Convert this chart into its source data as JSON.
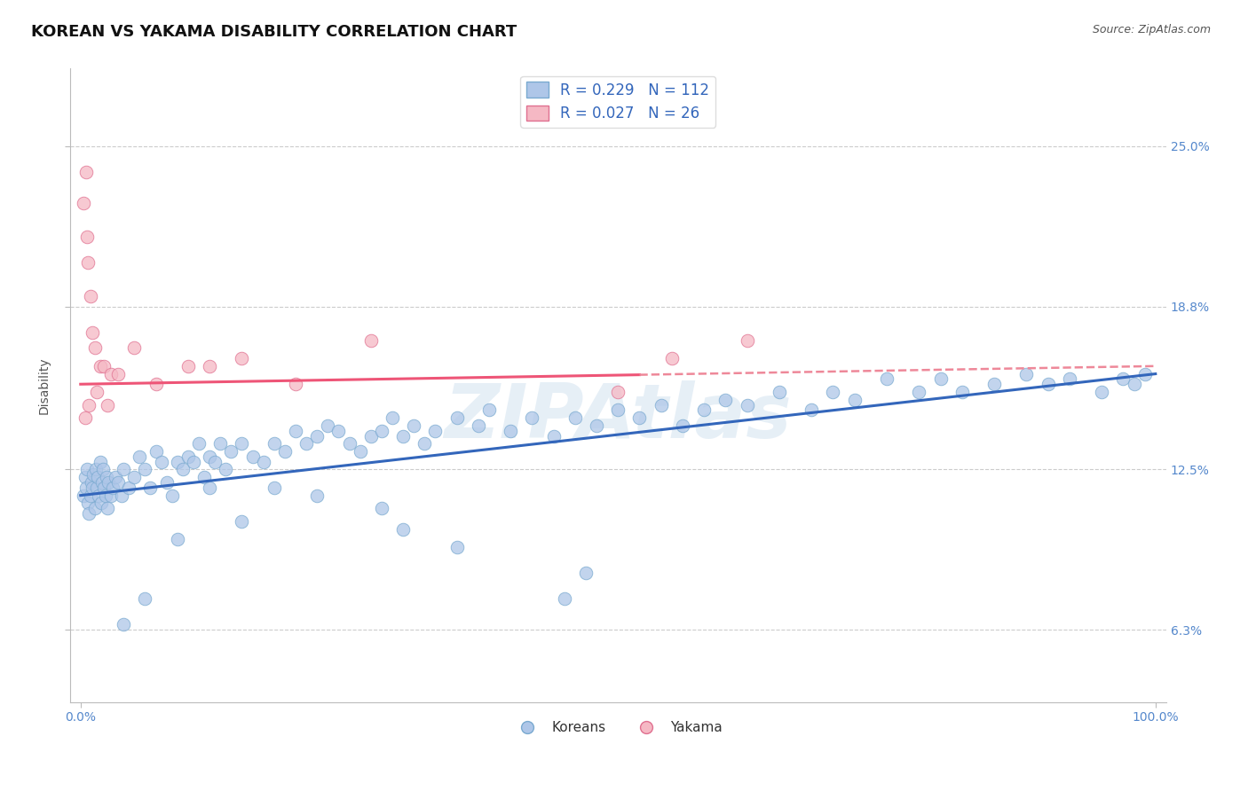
{
  "title": "KOREAN VS YAKAMA DISABILITY CORRELATION CHART",
  "source": "Source: ZipAtlas.com",
  "ylabel": "Disability",
  "xlim": [
    -1.0,
    101.0
  ],
  "ylim": [
    3.5,
    28.0
  ],
  "yticks": [
    6.3,
    12.5,
    18.8,
    25.0
  ],
  "xticks": [
    0.0,
    100.0
  ],
  "xtick_labels": [
    "0.0%",
    "100.0%"
  ],
  "ytick_labels": [
    "6.3%",
    "12.5%",
    "18.8%",
    "25.0%"
  ],
  "grid_color": "#cccccc",
  "background_color": "#ffffff",
  "korean_color": "#aec6e8",
  "korean_edge_color": "#7aaad0",
  "yakama_color": "#f5b8c4",
  "yakama_edge_color": "#e07090",
  "korean_R": 0.229,
  "korean_N": 112,
  "yakama_R": 0.027,
  "yakama_N": 26,
  "korean_line_color": "#3366bb",
  "yakama_line_color_solid": "#ee5577",
  "yakama_line_color_dash": "#ee8899",
  "watermark": "ZIPAtlas",
  "title_fontsize": 13,
  "axis_label_fontsize": 10,
  "tick_fontsize": 10,
  "legend_fontsize": 12,
  "korean_line_y0": 11.5,
  "korean_line_y1": 16.2,
  "yakama_line_y0": 15.8,
  "yakama_line_y1": 16.5,
  "yakama_solid_x1": 52.0,
  "korean_scatter_x": [
    0.3,
    0.4,
    0.5,
    0.6,
    0.7,
    0.8,
    0.9,
    1.0,
    1.1,
    1.2,
    1.3,
    1.4,
    1.5,
    1.6,
    1.7,
    1.8,
    1.9,
    2.0,
    2.1,
    2.2,
    2.3,
    2.4,
    2.5,
    2.6,
    2.8,
    3.0,
    3.2,
    3.5,
    3.8,
    4.0,
    4.5,
    5.0,
    5.5,
    6.0,
    6.5,
    7.0,
    7.5,
    8.0,
    8.5,
    9.0,
    9.5,
    10.0,
    10.5,
    11.0,
    11.5,
    12.0,
    12.5,
    13.0,
    13.5,
    14.0,
    15.0,
    16.0,
    17.0,
    18.0,
    19.0,
    20.0,
    21.0,
    22.0,
    23.0,
    24.0,
    25.0,
    26.0,
    27.0,
    28.0,
    29.0,
    30.0,
    31.0,
    32.0,
    33.0,
    35.0,
    37.0,
    38.0,
    40.0,
    42.0,
    44.0,
    46.0,
    48.0,
    50.0,
    52.0,
    54.0,
    56.0,
    58.0,
    60.0,
    62.0,
    65.0,
    68.0,
    70.0,
    72.0,
    75.0,
    78.0,
    80.0,
    82.0,
    85.0,
    88.0,
    90.0,
    92.0,
    95.0,
    97.0,
    98.0,
    99.0,
    47.0,
    35.0,
    30.0,
    45.0,
    28.0,
    22.0,
    18.0,
    15.0,
    12.0,
    9.0,
    6.0,
    4.0
  ],
  "korean_scatter_y": [
    11.5,
    12.2,
    11.8,
    12.5,
    11.2,
    10.8,
    11.5,
    12.0,
    11.8,
    12.3,
    11.0,
    12.5,
    11.8,
    12.2,
    11.5,
    12.8,
    11.2,
    12.0,
    12.5,
    11.8,
    11.5,
    12.2,
    11.0,
    12.0,
    11.5,
    11.8,
    12.2,
    12.0,
    11.5,
    12.5,
    11.8,
    12.2,
    13.0,
    12.5,
    11.8,
    13.2,
    12.8,
    12.0,
    11.5,
    12.8,
    12.5,
    13.0,
    12.8,
    13.5,
    12.2,
    13.0,
    12.8,
    13.5,
    12.5,
    13.2,
    13.5,
    13.0,
    12.8,
    13.5,
    13.2,
    14.0,
    13.5,
    13.8,
    14.2,
    14.0,
    13.5,
    13.2,
    13.8,
    14.0,
    14.5,
    13.8,
    14.2,
    13.5,
    14.0,
    14.5,
    14.2,
    14.8,
    14.0,
    14.5,
    13.8,
    14.5,
    14.2,
    14.8,
    14.5,
    15.0,
    14.2,
    14.8,
    15.2,
    15.0,
    15.5,
    14.8,
    15.5,
    15.2,
    16.0,
    15.5,
    16.0,
    15.5,
    15.8,
    16.2,
    15.8,
    16.0,
    15.5,
    16.0,
    15.8,
    16.2,
    8.5,
    9.5,
    10.2,
    7.5,
    11.0,
    11.5,
    11.8,
    10.5,
    11.8,
    9.8,
    7.5,
    6.5
  ],
  "yakama_scatter_x": [
    0.3,
    0.5,
    0.6,
    0.7,
    0.9,
    1.1,
    1.3,
    1.8,
    2.2,
    2.8,
    5.0,
    10.0,
    15.0,
    20.0,
    27.0,
    50.0,
    55.0,
    62.0
  ],
  "yakama_scatter_y": [
    22.8,
    24.0,
    21.5,
    20.5,
    19.2,
    17.8,
    17.2,
    16.5,
    16.5,
    16.2,
    17.2,
    16.5,
    16.8,
    15.8,
    17.5,
    15.5,
    16.8,
    17.5
  ],
  "yakama_extra_x": [
    0.4,
    0.8,
    1.5,
    2.5,
    3.5,
    7.0,
    12.0
  ],
  "yakama_extra_y": [
    14.5,
    15.0,
    15.5,
    15.0,
    16.2,
    15.8,
    16.5
  ]
}
